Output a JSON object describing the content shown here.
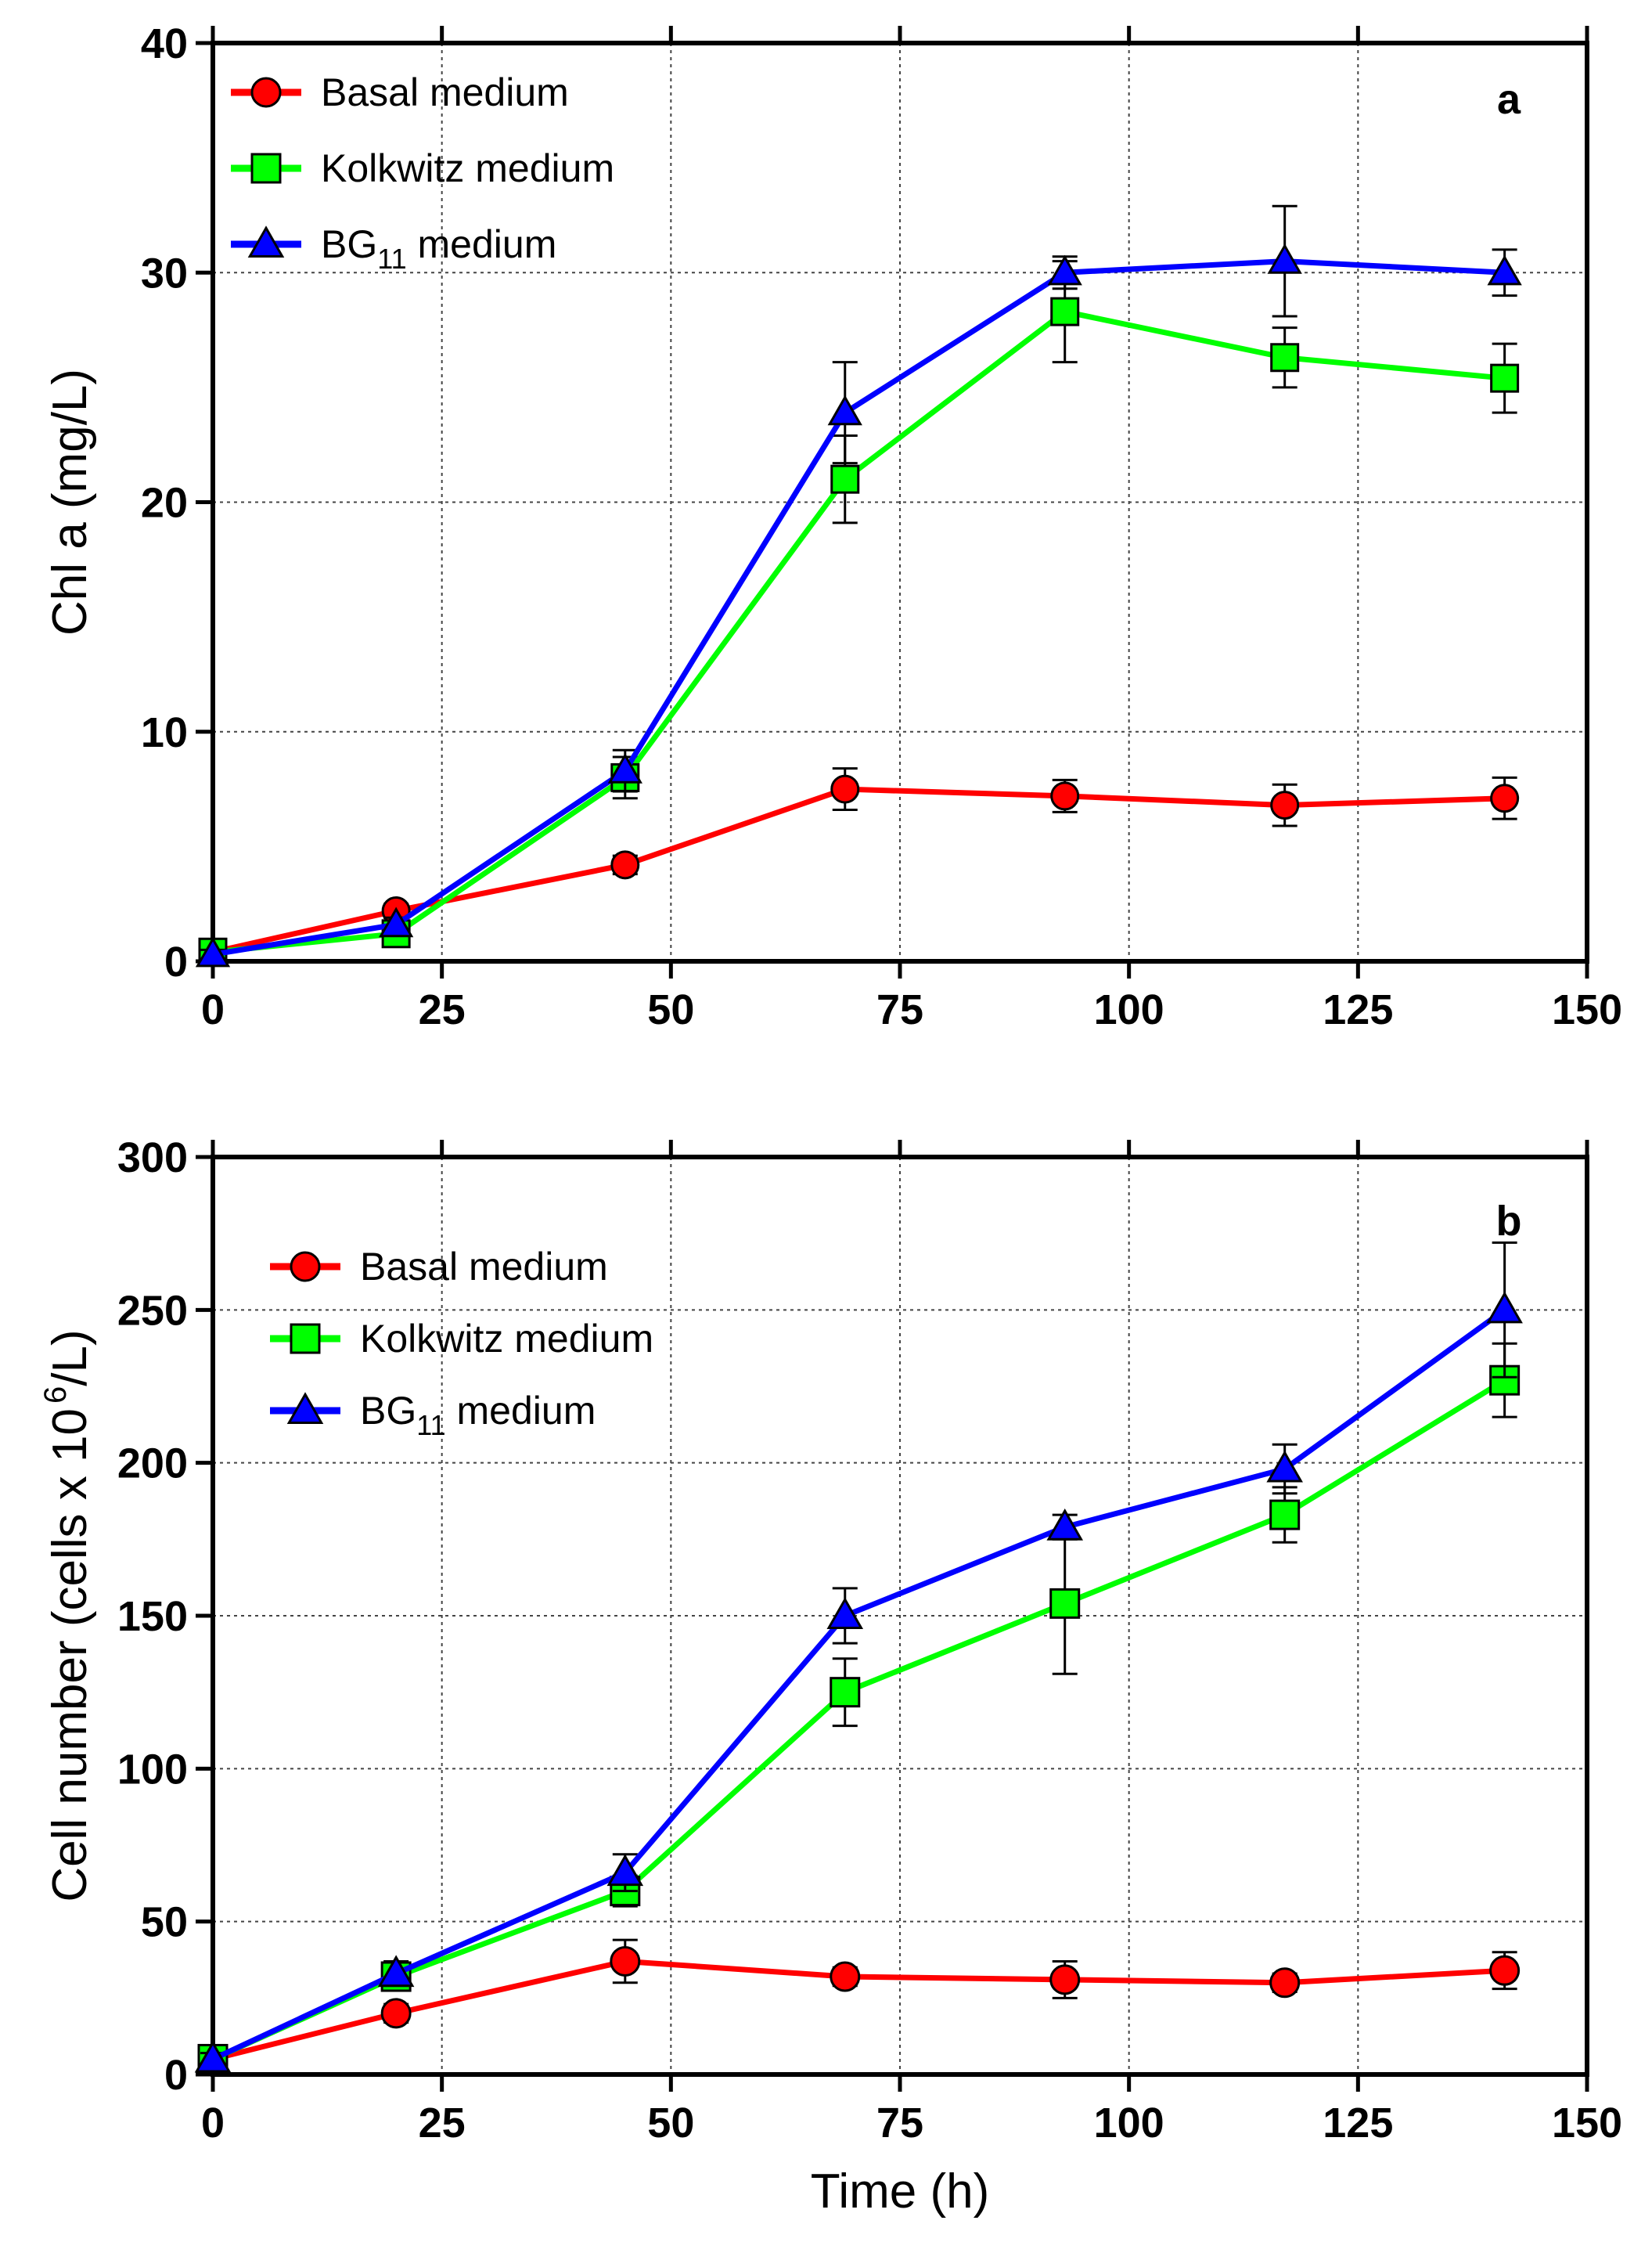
{
  "chart_data": [
    {
      "type": "line",
      "panel_label": "a",
      "title": "",
      "xlabel": "",
      "ylabel": "Chl a (mg/L)",
      "xlim": [
        0,
        150
      ],
      "ylim": [
        0,
        40
      ],
      "xticks": [
        "0",
        "25",
        "50",
        "75",
        "100",
        "125",
        "150"
      ],
      "yticks": [
        "0",
        "10",
        "20",
        "30",
        "40"
      ],
      "grid": true,
      "legend_position": "top-left",
      "x": [
        0,
        20,
        45,
        69,
        93,
        117,
        141
      ],
      "series": [
        {
          "name": "Basal medium",
          "label_main": "Basal medium",
          "label_sub": "",
          "label_tail": "",
          "color": "#ff0000",
          "marker": "circle",
          "filled_marker": true,
          "y": [
            0.4,
            2.2,
            4.2,
            7.5,
            7.2,
            6.8,
            7.1
          ],
          "err": [
            0.2,
            0.3,
            0.4,
            0.9,
            0.7,
            0.9,
            0.9
          ]
        },
        {
          "name": "Kolkwitz medium",
          "label_main": "Kolkwitz medium",
          "label_sub": "",
          "label_tail": "",
          "color": "#00ff00",
          "marker": "square",
          "filled_marker": true,
          "y": [
            0.4,
            1.2,
            8.0,
            21.0,
            28.3,
            26.3,
            25.4
          ],
          "err": [
            0.2,
            0.3,
            0.9,
            1.9,
            2.2,
            1.3,
            1.5
          ]
        },
        {
          "name": "BG11 medium",
          "label_main": "BG",
          "label_sub": "11",
          "label_tail": " medium",
          "color": "#0000ff",
          "marker": "triangle",
          "filled_marker": true,
          "y": [
            0.3,
            1.6,
            8.3,
            23.9,
            30.0,
            30.5,
            30.0
          ],
          "err": [
            0.2,
            0.3,
            0.9,
            2.2,
            0.7,
            2.4,
            1.0
          ]
        }
      ]
    },
    {
      "type": "line",
      "panel_label": "b",
      "title": "",
      "xlabel": "Time (h)",
      "ylabel": "Cell number (cells x 10",
      "ylabel_sup": "6",
      "ylabel_tail": "/L)",
      "xlim": [
        0,
        150
      ],
      "ylim": [
        0,
        300
      ],
      "xticks": [
        "0",
        "25",
        "50",
        "75",
        "100",
        "125",
        "150"
      ],
      "yticks": [
        "0",
        "50",
        "100",
        "150",
        "200",
        "250",
        "300"
      ],
      "grid": true,
      "legend_position": "top-left",
      "x": [
        0,
        20,
        45,
        69,
        93,
        117,
        141
      ],
      "series": [
        {
          "name": "Basal medium",
          "label_main": "Basal medium",
          "label_sub": "",
          "label_tail": "",
          "color": "#ff0000",
          "marker": "circle",
          "filled_marker": true,
          "y": [
            5,
            20,
            37,
            32,
            31,
            30,
            34
          ],
          "err": [
            2,
            3,
            7,
            3,
            6,
            3,
            6
          ]
        },
        {
          "name": "Kolkwitz medium",
          "label_main": "Kolkwitz medium",
          "label_sub": "",
          "label_tail": "",
          "color": "#00ff00",
          "marker": "square",
          "filled_marker": true,
          "y": [
            5,
            32,
            60,
            125,
            154,
            183,
            227
          ],
          "err": [
            2,
            4,
            5,
            11,
            23,
            9,
            12
          ]
        },
        {
          "name": "BG11 medium",
          "label_main": "BG",
          "label_sub": "11",
          "label_tail": " medium",
          "color": "#0000ff",
          "marker": "triangle",
          "filled_marker": true,
          "y": [
            5,
            33,
            66,
            150,
            179,
            198,
            250
          ],
          "err": [
            2,
            4,
            6,
            9,
            4,
            8,
            22
          ]
        }
      ]
    }
  ]
}
